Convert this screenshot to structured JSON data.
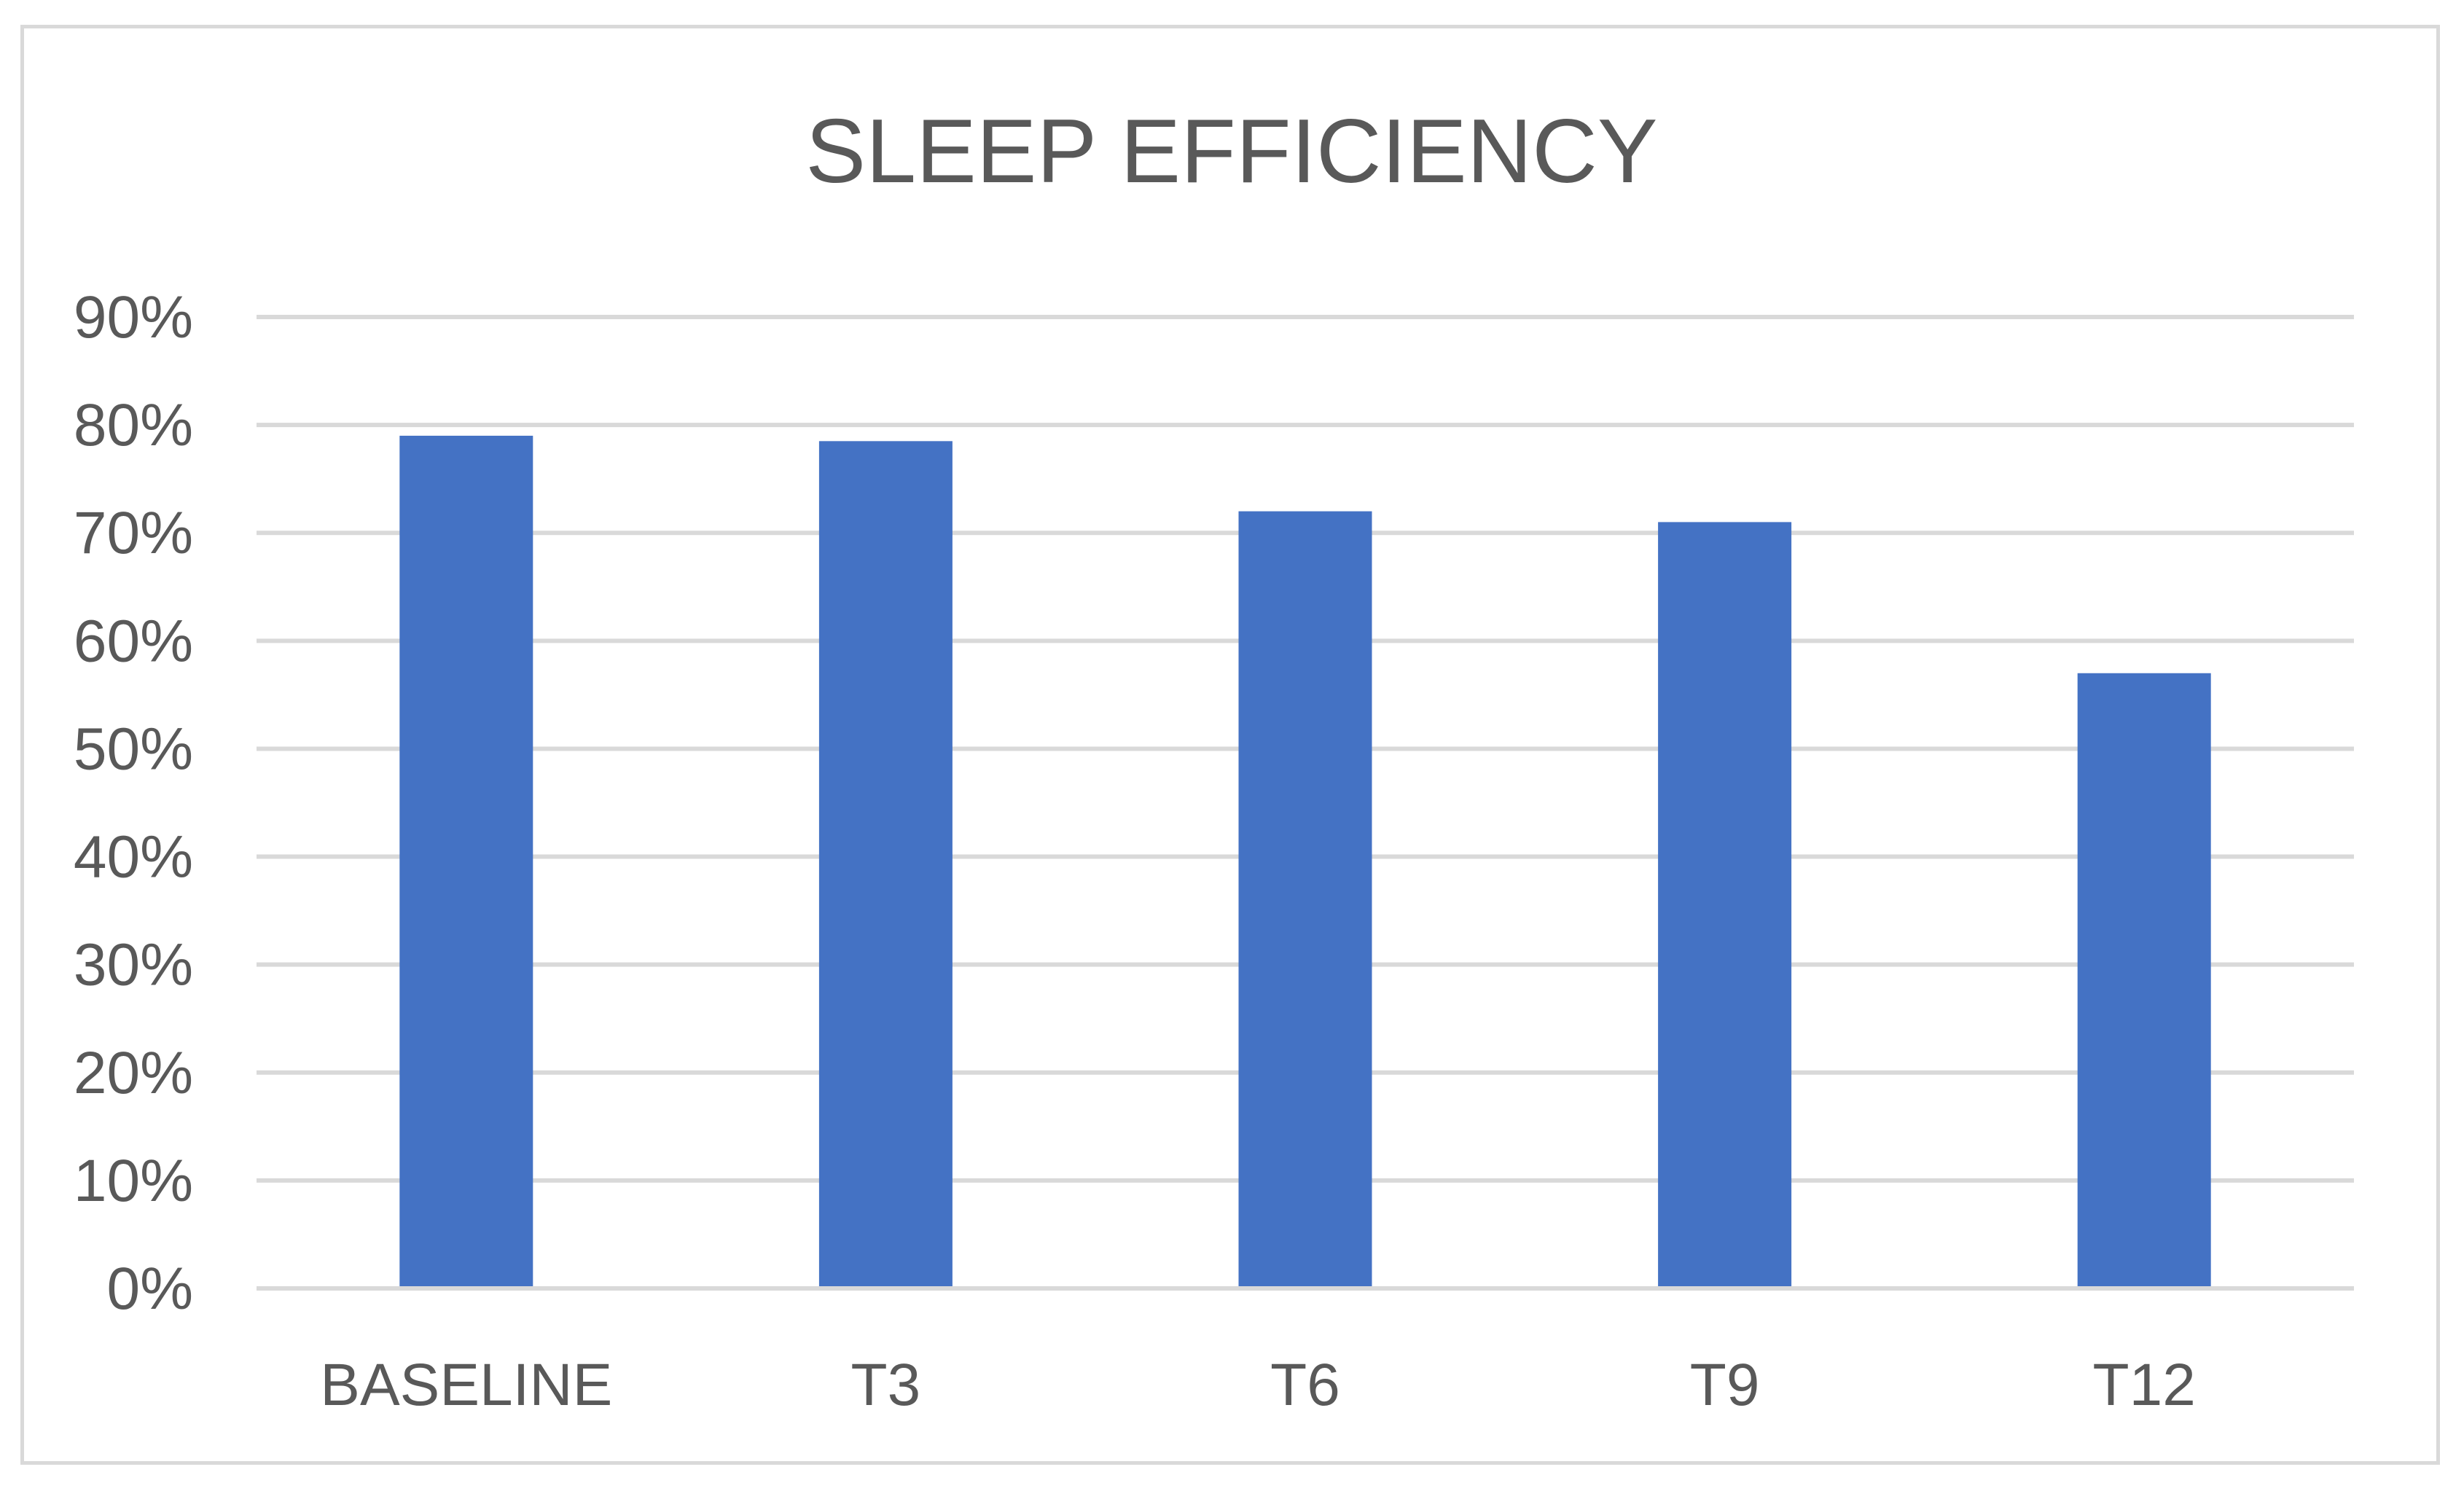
{
  "chart_data": {
    "type": "bar",
    "title": "SLEEP EFFICIENCY",
    "xlabel": "",
    "ylabel": "",
    "categories": [
      "BASELINE",
      "T3",
      "T6",
      "T9",
      "T12"
    ],
    "values": [
      0.79,
      0.785,
      0.72,
      0.71,
      0.57
    ],
    "ylim": [
      0,
      0.9
    ],
    "yticks": [
      0,
      0.1,
      0.2,
      0.3,
      0.4,
      0.5,
      0.6,
      0.7,
      0.8,
      0.9
    ],
    "ytick_labels": [
      "0%",
      "10%",
      "20%",
      "30%",
      "40%",
      "50%",
      "60%",
      "70%",
      "80%",
      "90%"
    ],
    "grid": true,
    "legend": "none",
    "colors": {
      "bar": "#4472c4",
      "grid": "#d9d9d9",
      "text": "#595959",
      "border": "#d9d9d9"
    }
  }
}
